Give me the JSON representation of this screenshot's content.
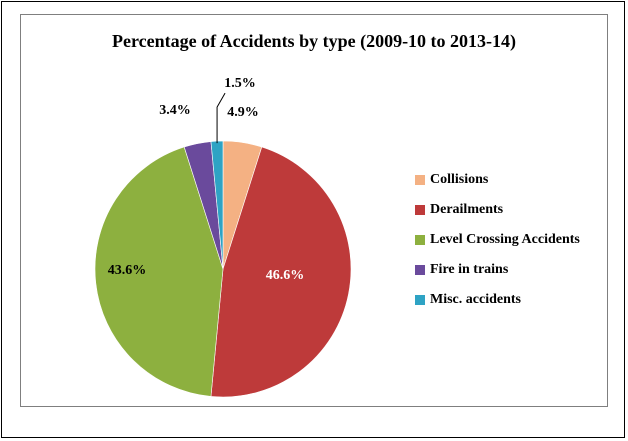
{
  "chart_data": {
    "type": "pie",
    "title": "Percentage of Accidents by type (2009-10 to 2013-14)",
    "legend_position": "right",
    "slices": [
      {
        "label": "Collisions",
        "value": 4.9,
        "value_label": "4.9%",
        "color": "#f4b183"
      },
      {
        "label": "Derailments",
        "value": 46.6,
        "value_label": "46.6%",
        "color": "#be3a3a"
      },
      {
        "label": "Level Crossing Accidents",
        "value": 43.6,
        "value_label": "43.6%",
        "color": "#8db03f"
      },
      {
        "label": "Fire in trains",
        "value": 3.4,
        "value_label": "3.4%",
        "color": "#6a4a9c"
      },
      {
        "label": "Misc. accidents",
        "value": 1.5,
        "value_label": "1.5%",
        "color": "#2ea3c4"
      }
    ]
  }
}
